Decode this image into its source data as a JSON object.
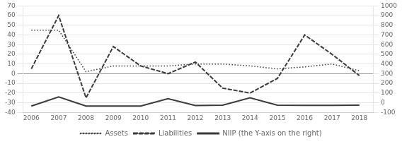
{
  "chart_data": {
    "type": "line",
    "x": [
      2006,
      2007,
      2008,
      2009,
      2010,
      2011,
      2012,
      2013,
      2014,
      2015,
      2016,
      2017,
      2018
    ],
    "xlim": [
      2005.7,
      2018.5
    ],
    "xticks": [
      2006,
      2007,
      2008,
      2009,
      2010,
      2011,
      2012,
      2013,
      2014,
      2015,
      2016,
      2017,
      2018
    ],
    "ylim": [
      -40,
      70
    ],
    "yticks": [
      -40,
      -30,
      -20,
      -10,
      0,
      10,
      20,
      30,
      40,
      50,
      60,
      70
    ],
    "y2lim": [
      -100,
      1000
    ],
    "y2ticks": [
      -100,
      0,
      100,
      200,
      300,
      400,
      500,
      600,
      700,
      800,
      900,
      1000
    ],
    "grid": "y",
    "legend": "bottom",
    "series": [
      {
        "name": "Assets",
        "color": "#3a3a3a",
        "line_style": "dotted",
        "values": [
          45,
          45,
          2,
          8,
          8,
          8,
          10,
          10,
          8,
          5,
          7,
          10,
          3
        ]
      },
      {
        "name": "Liabilities",
        "color": "#3a3a3a",
        "line_style": "dashed",
        "values": [
          5,
          60,
          -25,
          28,
          8,
          0,
          12,
          -15,
          -20,
          -5,
          40,
          20,
          -2
        ]
      },
      {
        "name": "NIIP (the Y-axis on the right)",
        "color": "#3a3a3a",
        "line_style": "solid",
        "axis": "y2",
        "values": [
          -35,
          60,
          -35,
          -35,
          -35,
          42,
          -29,
          -25,
          50,
          -25,
          -28,
          -27,
          -26
        ]
      }
    ]
  }
}
